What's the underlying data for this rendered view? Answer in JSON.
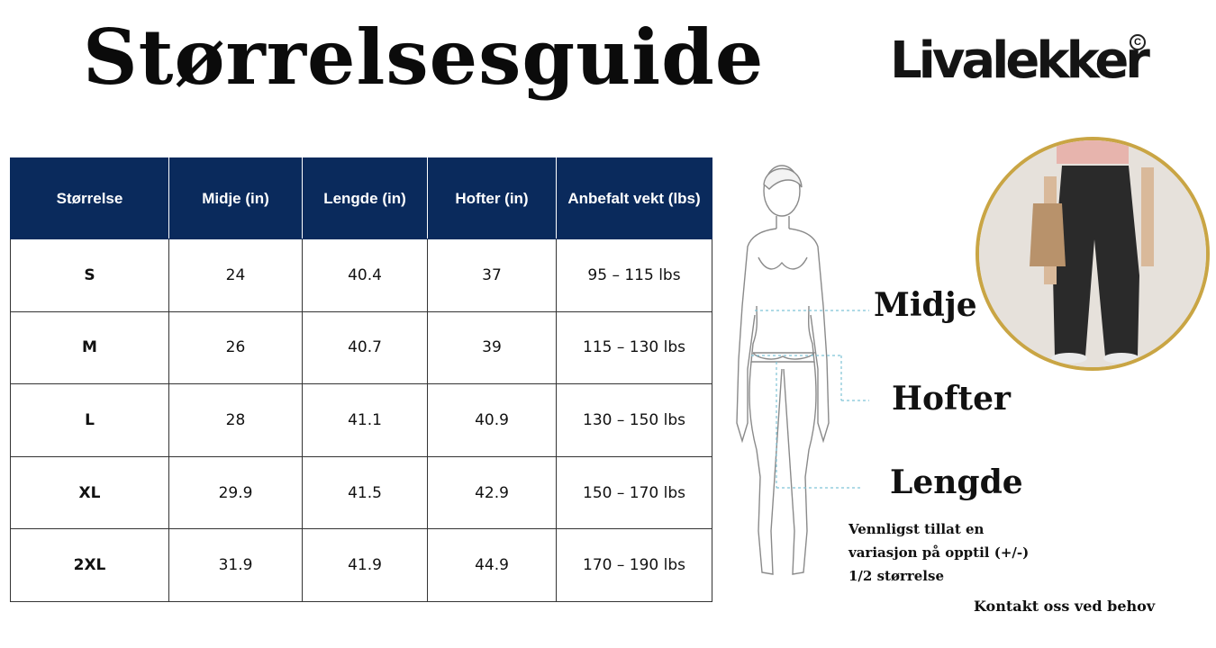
{
  "title": "Størrelsesguide",
  "brand": {
    "name": "Livalekker",
    "mark": "C"
  },
  "table": {
    "headers": [
      "Størrelse",
      "Midje (in)",
      "Lengde (in)",
      "Hofter (in)",
      "Anbefalt vekt (lbs)"
    ],
    "rows": [
      [
        "S",
        "24",
        "40.4",
        "37",
        "95 – 115 lbs"
      ],
      [
        "M",
        "26",
        "40.7",
        "39",
        "115 – 130 lbs"
      ],
      [
        "L",
        "28",
        "41.1",
        "40.9",
        "130 – 150 lbs"
      ],
      [
        "XL",
        "29.9",
        "41.5",
        "42.9",
        "150 – 170 lbs"
      ],
      [
        "2XL",
        "31.9",
        "41.9",
        "44.9",
        "170 – 190 lbs"
      ]
    ]
  },
  "labels": {
    "waist": "Midje",
    "hips": "Hofter",
    "length": "Lengde"
  },
  "note": "Vennligst tillat en variasjon på opptil (+/-) 1/2 størrelse",
  "contact": "Kontakt oss ved behov",
  "colors": {
    "header_bg": "#0a2a5c",
    "photo_border": "#c9a544",
    "guide_line": "#7fc3d6"
  }
}
